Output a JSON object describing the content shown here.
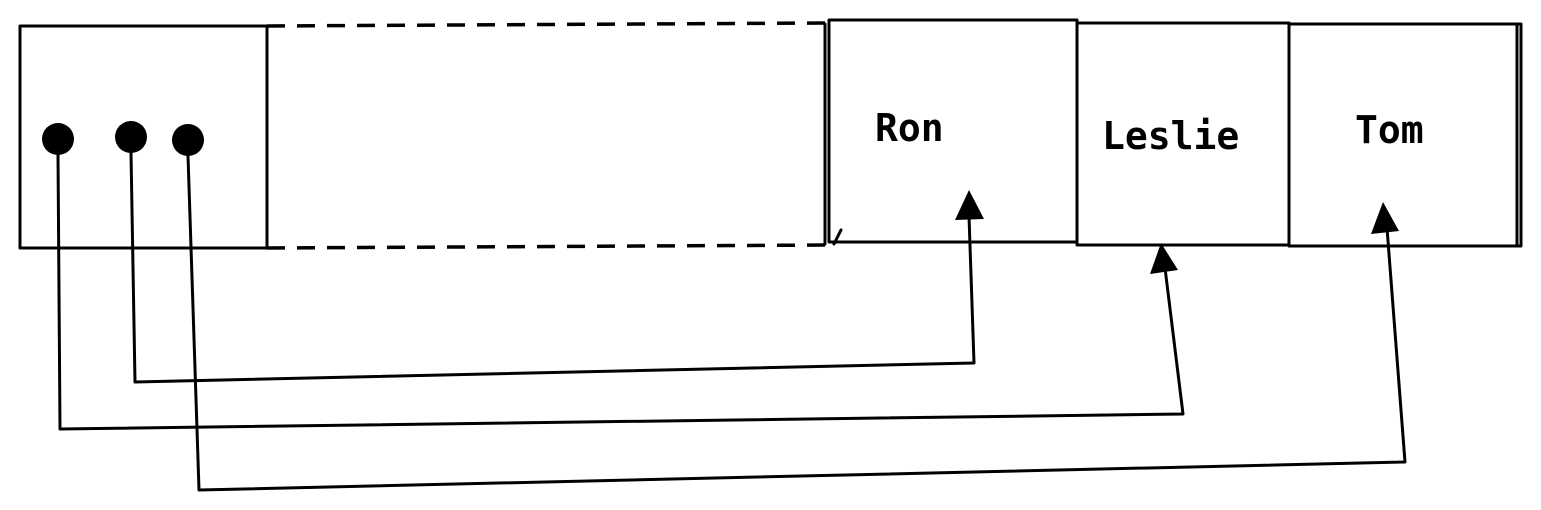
{
  "diagram": {
    "cells": [
      {
        "label": "Ron"
      },
      {
        "label": "Leslie"
      },
      {
        "label": "Tom"
      }
    ]
  }
}
